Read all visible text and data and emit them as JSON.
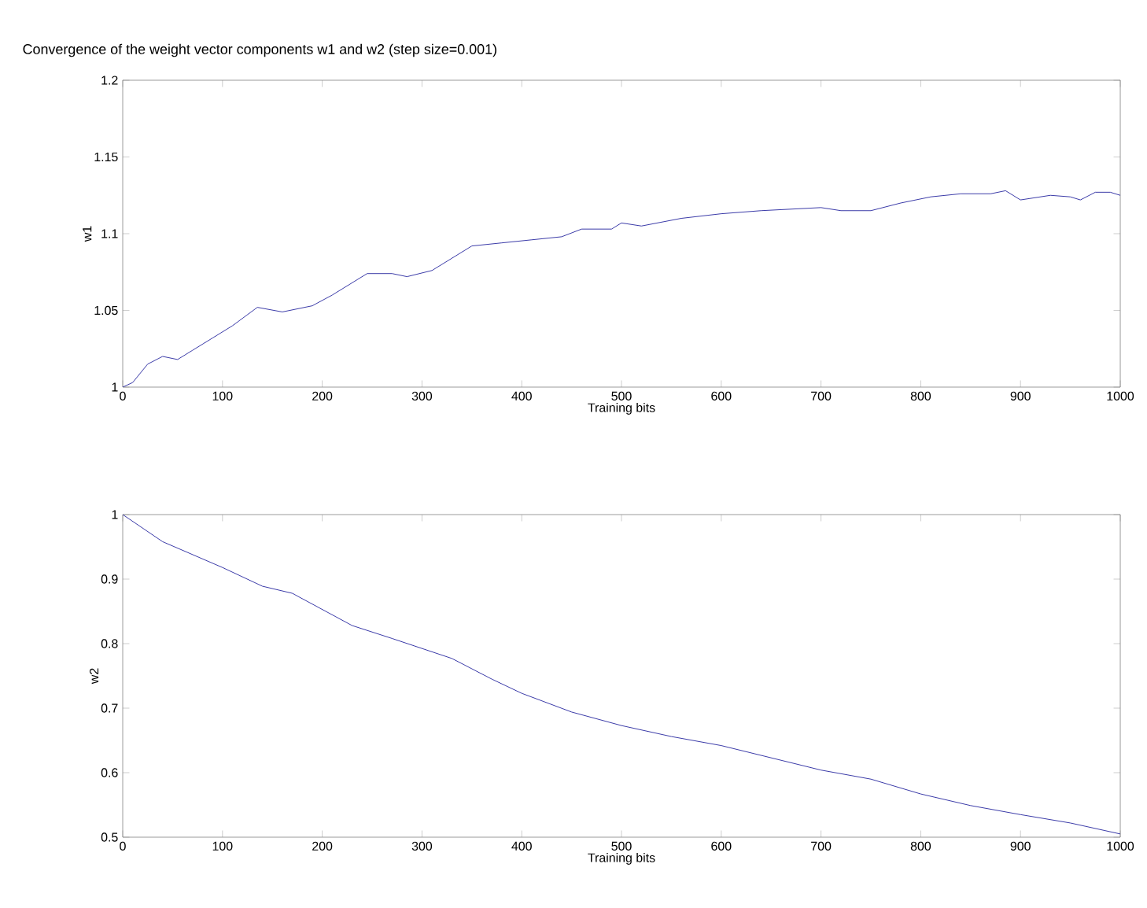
{
  "chart_data": [
    {
      "type": "line",
      "title": "Convergence of the weight vector  components  w1 and w2 (step size=0.001)",
      "xlabel": "Training bits",
      "ylabel": "w1",
      "xlim": [
        0,
        1000
      ],
      "ylim": [
        1,
        1.2
      ],
      "xticks": [
        0,
        100,
        200,
        300,
        400,
        500,
        600,
        700,
        800,
        900,
        1000
      ],
      "yticks": [
        1,
        1.05,
        1.1,
        1.15,
        1.2
      ],
      "grid": false,
      "series": [
        {
          "color": "#3a3aa8",
          "x": [
            0,
            10,
            25,
            40,
            55,
            70,
            90,
            110,
            135,
            160,
            190,
            210,
            245,
            270,
            285,
            310,
            350,
            380,
            410,
            440,
            460,
            490,
            500,
            520,
            560,
            600,
            640,
            700,
            720,
            750,
            780,
            810,
            840,
            870,
            885,
            900,
            930,
            950,
            960,
            975,
            990,
            1000
          ],
          "values": [
            1.0,
            1.003,
            1.015,
            1.02,
            1.018,
            1.024,
            1.032,
            1.04,
            1.052,
            1.049,
            1.053,
            1.06,
            1.074,
            1.074,
            1.072,
            1.076,
            1.092,
            1.094,
            1.096,
            1.098,
            1.103,
            1.103,
            1.107,
            1.105,
            1.11,
            1.113,
            1.115,
            1.117,
            1.115,
            1.115,
            1.12,
            1.124,
            1.126,
            1.126,
            1.128,
            1.122,
            1.125,
            1.124,
            1.122,
            1.127,
            1.127,
            1.125
          ]
        }
      ]
    },
    {
      "type": "line",
      "xlabel": "Training bits",
      "ylabel": "w2",
      "xlim": [
        0,
        1000
      ],
      "ylim": [
        0.5,
        1
      ],
      "xticks": [
        0,
        100,
        200,
        300,
        400,
        500,
        600,
        700,
        800,
        900,
        1000
      ],
      "yticks": [
        0.5,
        0.6,
        0.7,
        0.8,
        0.9,
        1
      ],
      "grid": false,
      "series": [
        {
          "color": "#3a3aa8",
          "x": [
            0,
            40,
            100,
            140,
            170,
            230,
            270,
            330,
            370,
            400,
            450,
            500,
            550,
            600,
            650,
            700,
            750,
            800,
            850,
            900,
            950,
            1000
          ],
          "values": [
            1.0,
            0.958,
            0.918,
            0.889,
            0.878,
            0.828,
            0.808,
            0.777,
            0.745,
            0.723,
            0.694,
            0.673,
            0.656,
            0.642,
            0.623,
            0.604,
            0.59,
            0.567,
            0.549,
            0.535,
            0.522,
            0.505
          ]
        }
      ]
    }
  ]
}
